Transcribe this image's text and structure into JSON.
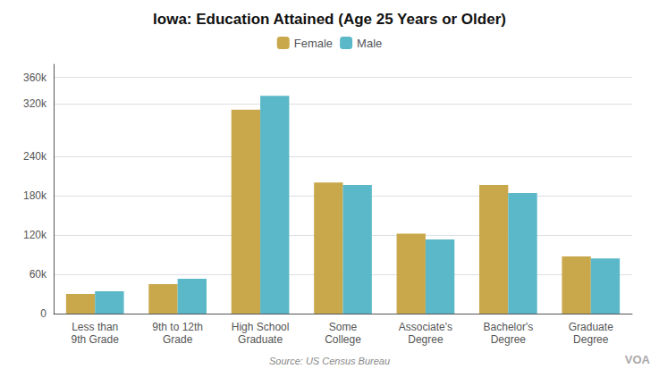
{
  "chart_data": {
    "type": "bar",
    "title": "Iowa: Education Attained (Age 25 Years or Older)",
    "categories": [
      "Less than\n9th Grade",
      "9th to 12th\nGrade",
      "High School\nGraduate",
      "Some\nCollege",
      "Associate's\nDegree",
      "Bachelor's\nDegree",
      "Graduate\nDegree"
    ],
    "series": [
      {
        "name": "Female",
        "color": "#C9A84C",
        "values": [
          30000,
          45000,
          311000,
          200000,
          122000,
          196000,
          87000
        ]
      },
      {
        "name": "Male",
        "color": "#5BB8C8",
        "values": [
          34000,
          53000,
          332000,
          196000,
          113000,
          184000,
          84000
        ]
      }
    ],
    "ylim": [
      0,
      380000
    ],
    "yticks": [
      0,
      {
        "value": 60000,
        "label": "60k"
      },
      {
        "value": 120000,
        "label": "120k"
      },
      {
        "value": 180000,
        "label": "180k"
      },
      {
        "value": 240000,
        "label": "240k"
      },
      {
        "value": 320000,
        "label": "320k"
      },
      {
        "value": 360000,
        "label": "360k"
      }
    ],
    "grid": true,
    "legend": "top",
    "annotations": [
      "Source: US Census Bureau",
      "VOA"
    ]
  }
}
